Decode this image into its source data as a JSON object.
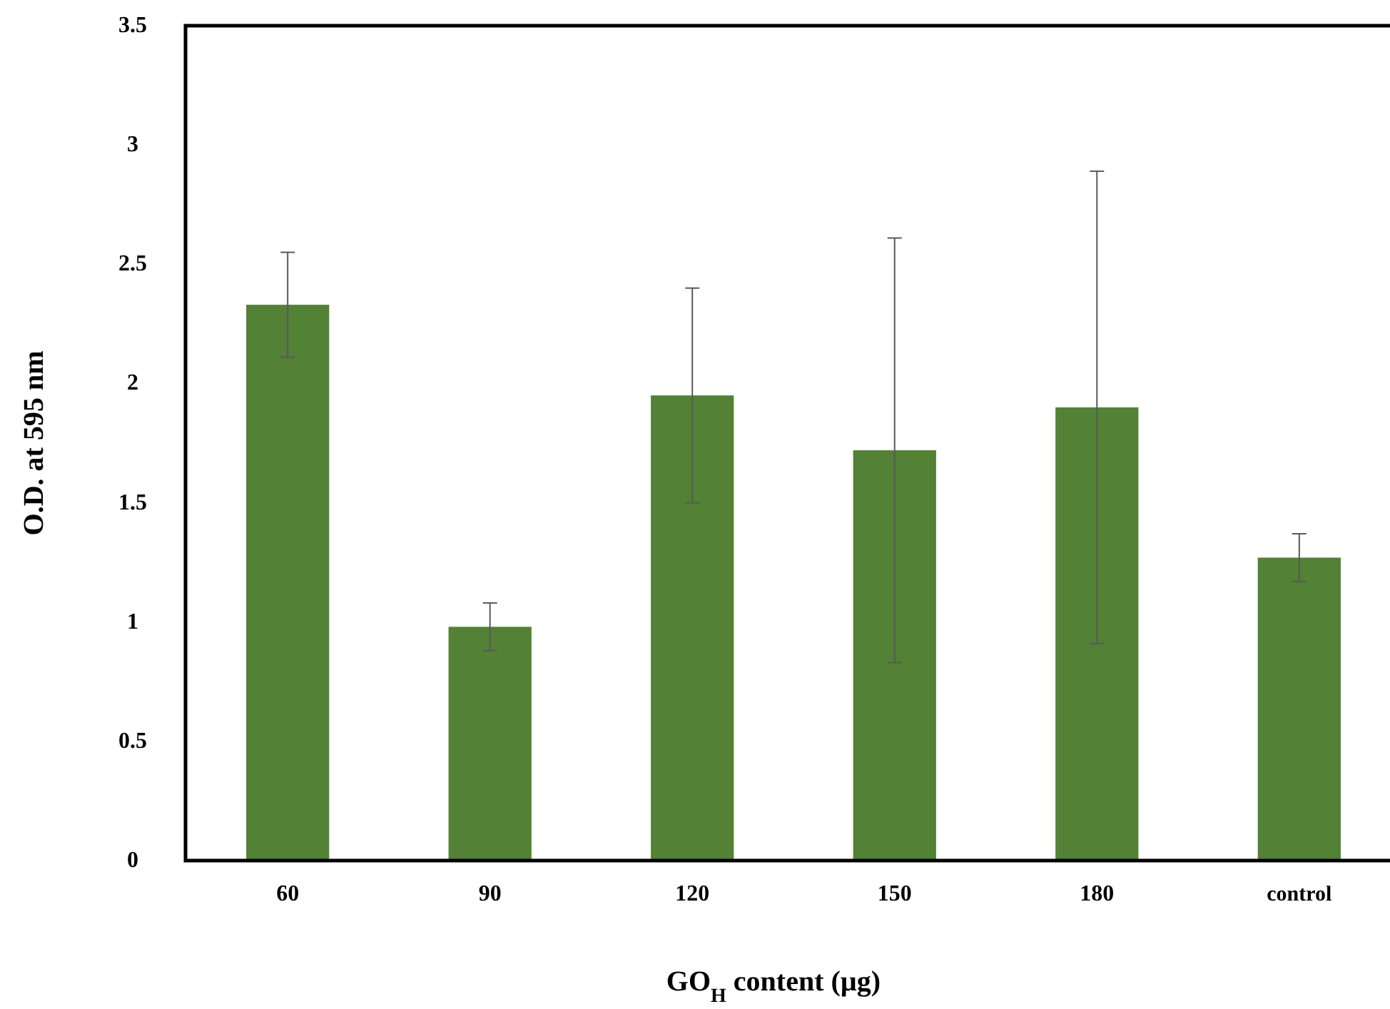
{
  "chart_data": {
    "type": "bar",
    "xlabel": "GO$_{H}$ content (µg)",
    "ylabel": "O.D. at 595 nm",
    "categories": [
      "60",
      "90",
      "120",
      "150",
      "180",
      "control"
    ],
    "values": [
      2.33,
      0.98,
      1.95,
      1.72,
      1.9,
      1.27
    ],
    "errors": [
      0.22,
      0.1,
      0.45,
      0.89,
      0.99,
      0.1
    ],
    "color": "#538135",
    "ylim": [
      0,
      3.5
    ],
    "yticks": [
      0,
      0.5,
      1,
      1.5,
      2,
      2.5,
      3,
      3.5
    ],
    "grid": false
  }
}
